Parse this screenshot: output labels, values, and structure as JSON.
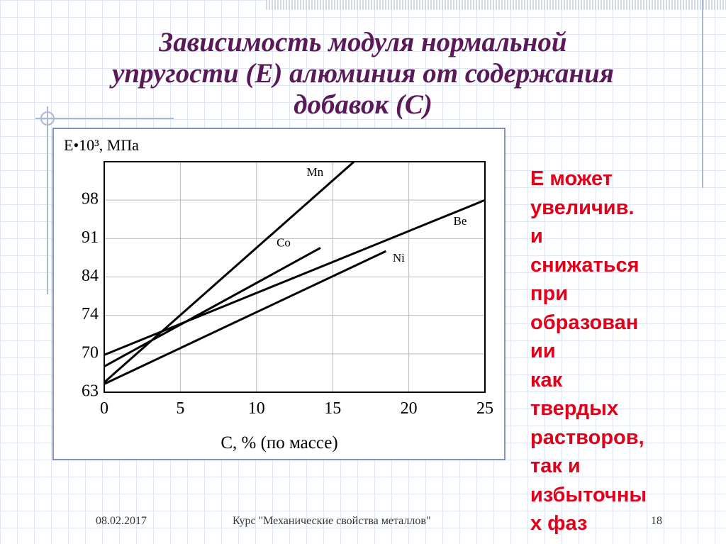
{
  "title": [
    "Зависимость модуля нормальной",
    "упругости (Е) алюминия от содержания",
    "добавок (С)"
  ],
  "chart_data": {
    "type": "line",
    "y_label": "E•10³, МПа",
    "x_label": "C, % (по массе)",
    "xlim": [
      0,
      25
    ],
    "xticks": [
      0,
      5,
      10,
      15,
      20,
      25
    ],
    "ylim": [
      63,
      105
    ],
    "yticks": [
      63,
      70,
      74,
      84,
      91,
      98
    ],
    "grid": true,
    "series": [
      {
        "name": "Mn",
        "color": "#000000",
        "x": [
          0,
          16.4
        ],
        "values": [
          64.8,
          105
        ]
      },
      {
        "name": "Co",
        "color": "#000000",
        "x": [
          0,
          14.2
        ],
        "values": [
          67.7,
          89.3
        ]
      },
      {
        "name": "Be",
        "color": "#000000",
        "x": [
          0,
          25
        ],
        "values": [
          69.8,
          98
        ]
      },
      {
        "name": "Ni",
        "color": "#000000",
        "x": [
          0,
          18.5
        ],
        "values": [
          64.5,
          88.7
        ]
      }
    ]
  },
  "side_text": [
    "Е может",
    "увеличив.",
    "и",
    "снижаться",
    "при",
    "образован",
    "ии",
    "как",
    "твердых",
    "растворов,",
    "так и",
    "избыточны",
    "х фаз"
  ],
  "footer": {
    "date": "08.02.2017",
    "course": "Курс \"Механические свойства металлов\"",
    "page": "18"
  }
}
